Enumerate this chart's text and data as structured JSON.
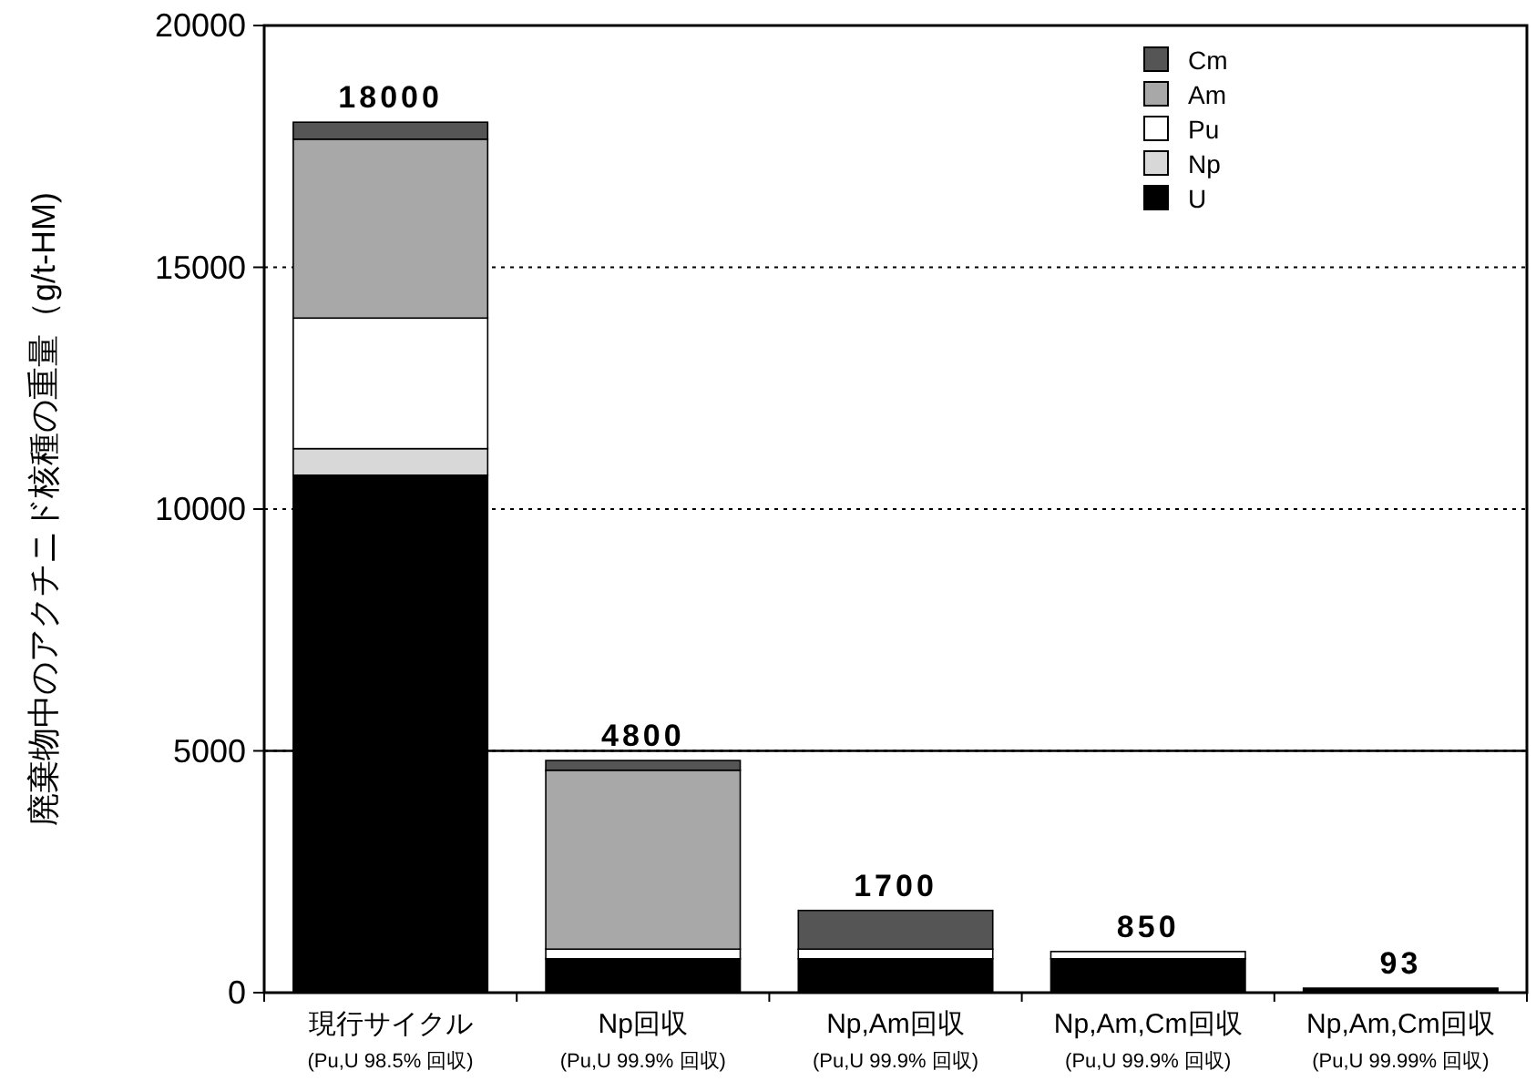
{
  "chart_data": {
    "type": "bar",
    "stacked": true,
    "ylabel": "廃棄物中のアクチニド核種の重量（g/t-HM)",
    "categories": [
      "現行サイクル\n(Pu,U 98.5% 回収)",
      "Np回収\n(Pu,U 99.9% 回収)",
      "Np,Am回収\n(Pu,U 99.9% 回収)",
      "Np,Am,Cm回収\n(Pu,U 99.9% 回収)",
      "Np,Am,Cm回収\n(Pu,U 99.99% 回収)"
    ],
    "series": [
      {
        "name": "U",
        "color": "#000000",
        "values": [
          10700,
          700,
          700,
          700,
          93
        ]
      },
      {
        "name": "Np",
        "color": "#d8d8d8",
        "values": [
          550,
          0,
          0,
          0,
          0
        ]
      },
      {
        "name": "Pu",
        "color": "#ffffff",
        "values": [
          2700,
          200,
          200,
          150,
          null
        ]
      },
      {
        "name": "Am",
        "color": "#a8a8a8",
        "values": [
          3700,
          3700,
          0,
          0,
          0
        ]
      },
      {
        "name": "Cm",
        "color": "#555555",
        "values": [
          350,
          200,
          800,
          0,
          0
        ]
      }
    ],
    "totals": [
      "18000",
      "4800",
      "1700",
      "850",
      "93"
    ],
    "ylim": [
      0,
      20000
    ],
    "yticks": [
      0,
      5000,
      10000,
      15000,
      20000
    ],
    "grid": "y",
    "line_style": "dotted",
    "ref_lines": [
      {
        "axis": "y",
        "value": 5000,
        "line_style": "solid"
      }
    ],
    "legend": "top right"
  }
}
